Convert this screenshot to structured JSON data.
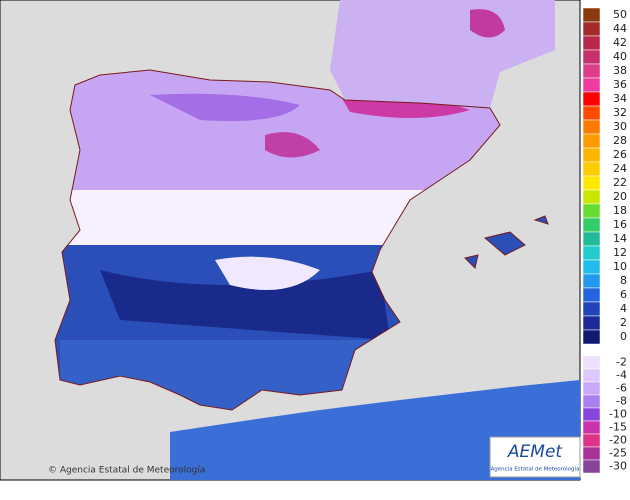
{
  "copyright": "© Agencia Estatal de Meteorología",
  "logo": {
    "mark": "AEMet",
    "caption": "Agencia Estatal de Meteorología"
  },
  "legend": {
    "upper": [
      {
        "value": 50,
        "color": "#8b3a10"
      },
      {
        "value": 44,
        "color": "#a52a2a"
      },
      {
        "value": 42,
        "color": "#b8284a"
      },
      {
        "value": 40,
        "color": "#c8306a"
      },
      {
        "value": 38,
        "color": "#dd3c88"
      },
      {
        "value": 36,
        "color": "#f03ca0"
      },
      {
        "value": 34,
        "color": "#ff0000"
      },
      {
        "value": 32,
        "color": "#ff4a00"
      },
      {
        "value": 30,
        "color": "#ff7a00"
      },
      {
        "value": 28,
        "color": "#ff9a00"
      },
      {
        "value": 26,
        "color": "#ffb400"
      },
      {
        "value": 24,
        "color": "#ffcc00"
      },
      {
        "value": 22,
        "color": "#ffe800"
      },
      {
        "value": 20,
        "color": "#c8e600"
      },
      {
        "value": 18,
        "color": "#66dd33"
      },
      {
        "value": 16,
        "color": "#33cc66"
      },
      {
        "value": 14,
        "color": "#22bb99"
      },
      {
        "value": 12,
        "color": "#22cccc"
      },
      {
        "value": 10,
        "color": "#22bbee"
      },
      {
        "value": 8,
        "color": "#2299ee"
      },
      {
        "value": 6,
        "color": "#2266dd"
      },
      {
        "value": 4,
        "color": "#2244bb"
      },
      {
        "value": 2,
        "color": "#1a2a99"
      },
      {
        "value": 0,
        "color": "#101a70"
      }
    ],
    "lower": [
      {
        "value": -2,
        "color": "#f0e0ff"
      },
      {
        "value": -4,
        "color": "#dcc8ff"
      },
      {
        "value": -6,
        "color": "#c8a8f8"
      },
      {
        "value": -8,
        "color": "#aa7ff0"
      },
      {
        "value": -10,
        "color": "#8844dd"
      },
      {
        "value": -15,
        "color": "#cc33aa"
      },
      {
        "value": -20,
        "color": "#dd3388"
      },
      {
        "value": -25,
        "color": "#aa3399"
      },
      {
        "value": -30,
        "color": "#884499"
      }
    ]
  }
}
